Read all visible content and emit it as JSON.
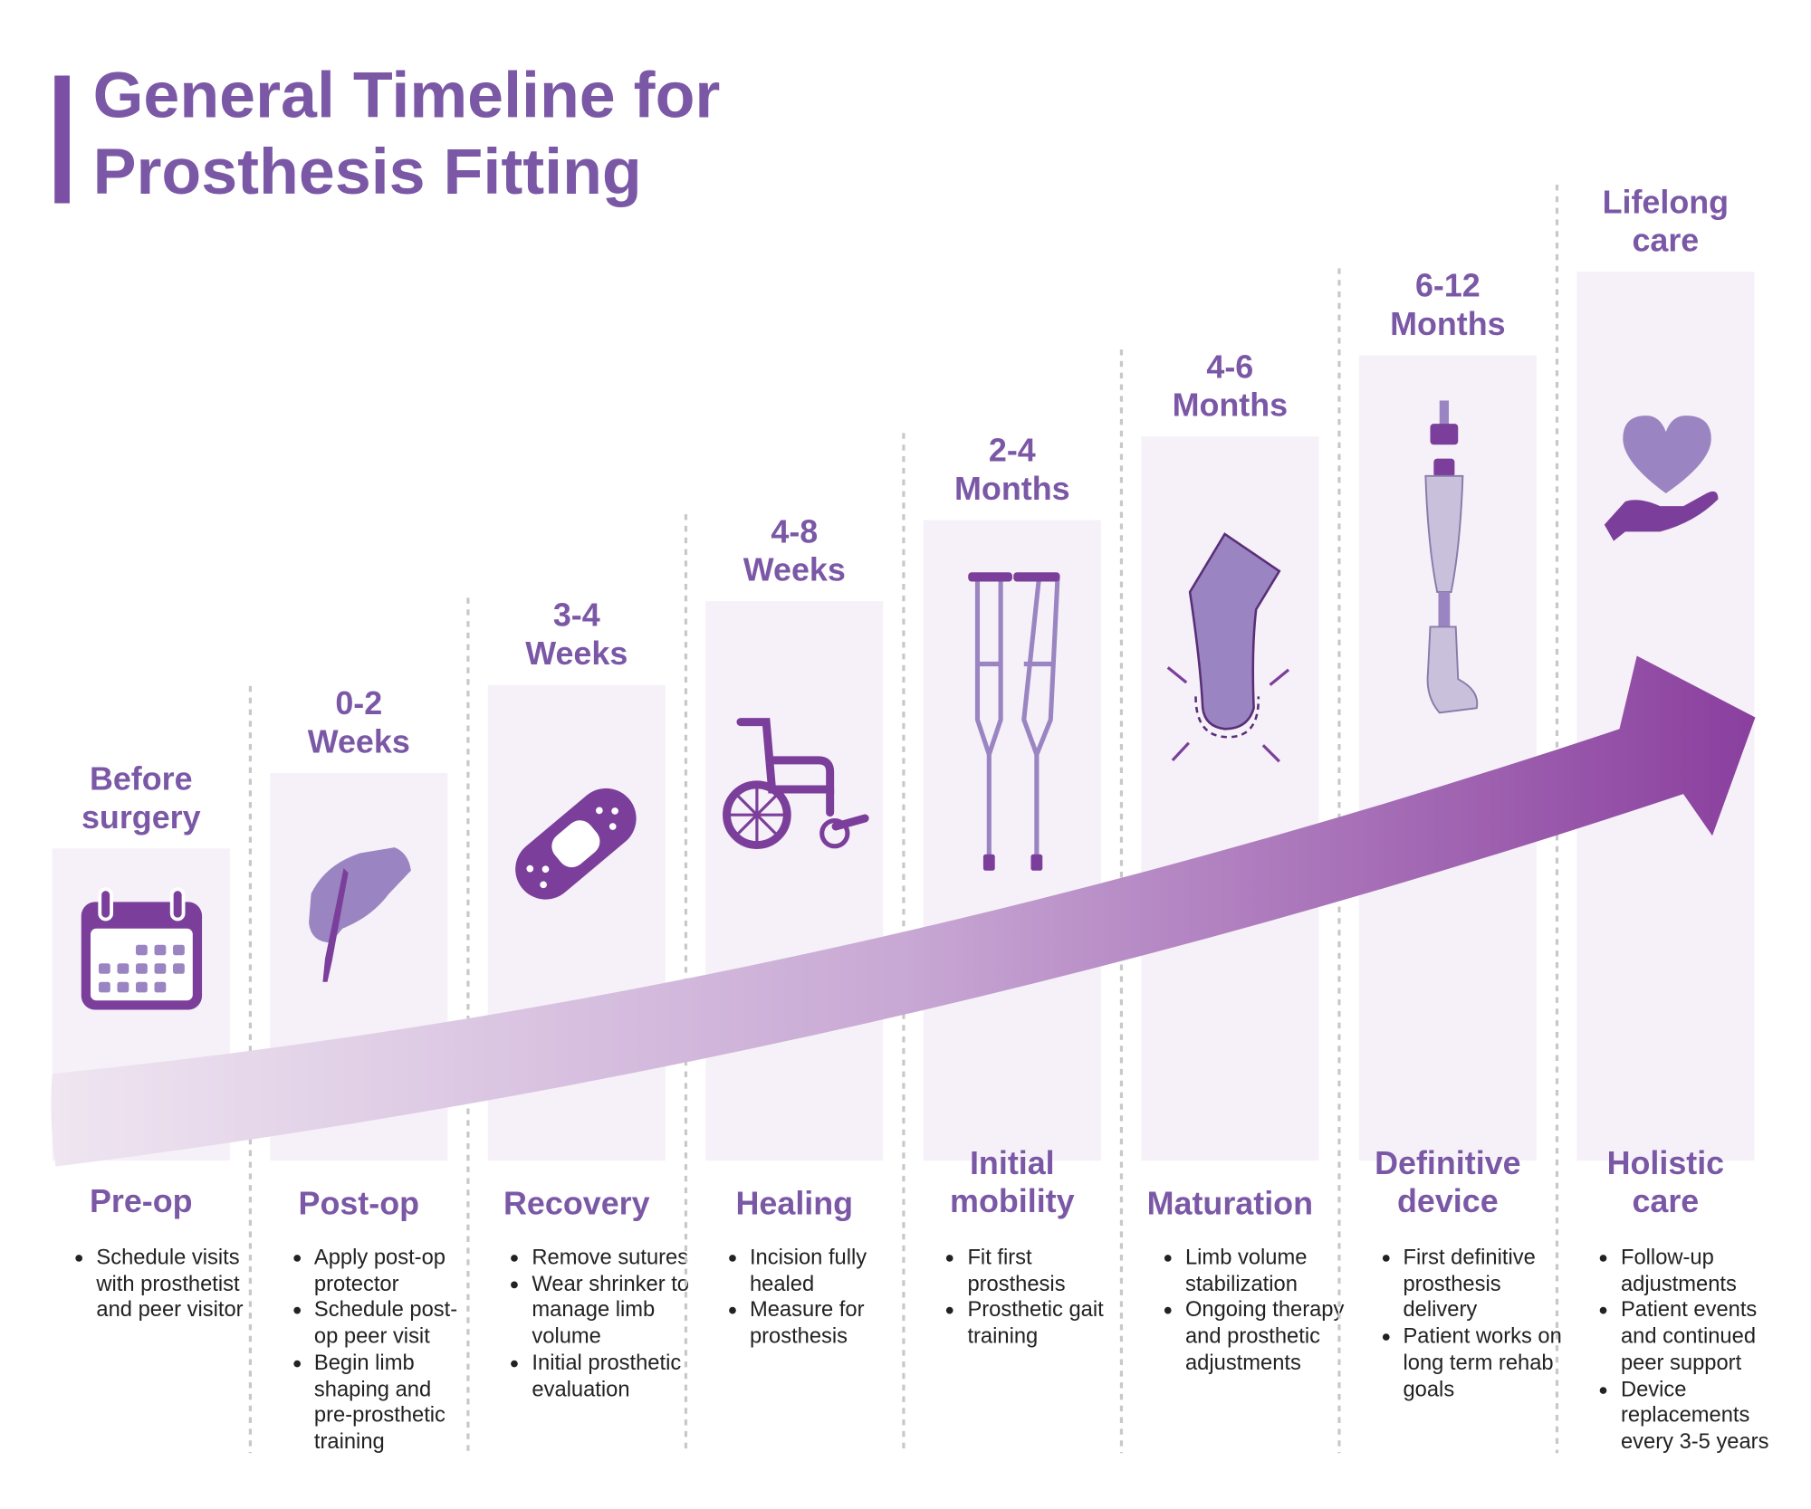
{
  "title": [
    "General Timeline for",
    "Prosthesis Fitting"
  ],
  "stages": [
    {
      "time": [
        "Before",
        "surgery"
      ],
      "name": [
        "Pre-op"
      ],
      "bullets": [
        "Schedule visits with prosthetist and peer visitor"
      ]
    },
    {
      "time": [
        "0-2",
        "Weeks"
      ],
      "name": [
        "Post-op"
      ],
      "bullets": [
        "Apply post-op protector",
        "Schedule post-op peer visit",
        "Begin limb shaping and pre-prosthetic training"
      ]
    },
    {
      "time": [
        "3-4",
        "Weeks"
      ],
      "name": [
        "Recovery"
      ],
      "bullets": [
        "Remove sutures",
        "Wear shrinker to manage limb volume",
        "Initial prosthetic evaluation"
      ]
    },
    {
      "time": [
        "4-8",
        "Weeks"
      ],
      "name": [
        "Healing"
      ],
      "bullets": [
        "Incision fully healed",
        "Measure for prosthesis"
      ]
    },
    {
      "time": [
        "2-4",
        "Months"
      ],
      "name": [
        "Initial",
        "mobility"
      ],
      "bullets": [
        "Fit first prosthesis",
        "Prosthetic gait training"
      ]
    },
    {
      "time": [
        "4-6",
        "Months"
      ],
      "name": [
        "Maturation"
      ],
      "bullets": [
        "Limb volume stabilization",
        "Ongoing therapy and prosthetic adjustments"
      ]
    },
    {
      "time": [
        "6-12",
        "Months"
      ],
      "name": [
        "Definitive",
        "device"
      ],
      "bullets": [
        "First definitive prosthesis delivery",
        "Patient works on long term rehab goals"
      ]
    },
    {
      "time": [
        "Lifelong",
        "care"
      ],
      "name": [
        "Holistic",
        "care"
      ],
      "bullets": [
        "Follow-up adjustments",
        "Patient events and continued peer support",
        "Device replacements every 3-5 years"
      ]
    }
  ]
}
